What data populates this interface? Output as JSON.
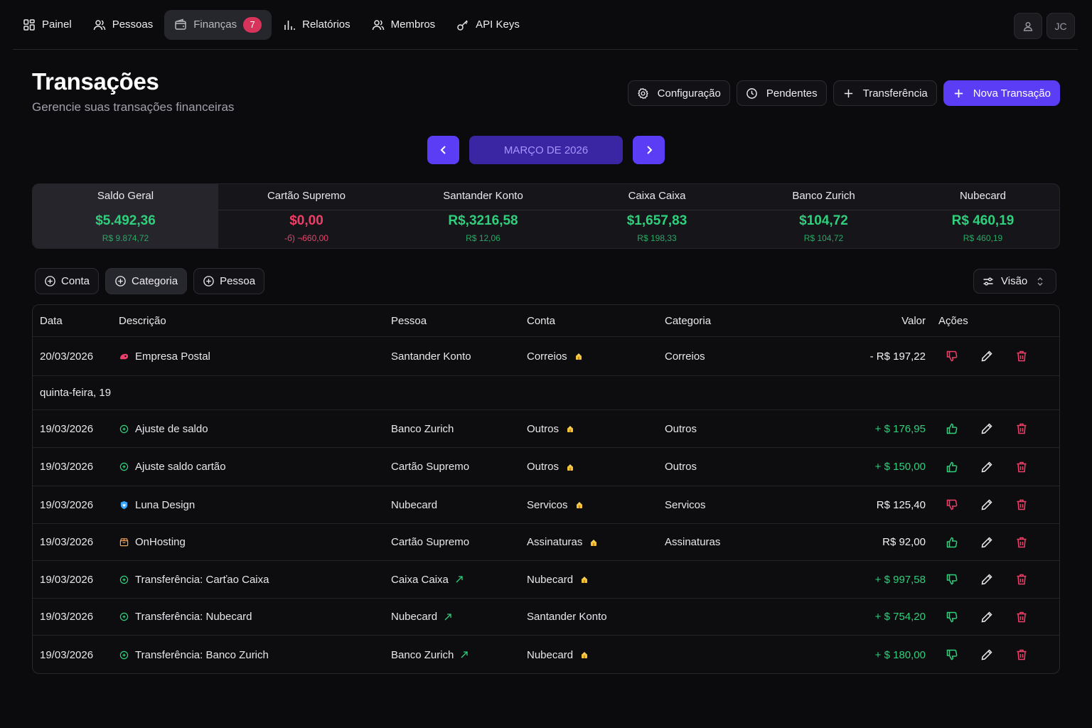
{
  "nav": {
    "items": [
      {
        "label": "Painel",
        "icon": "dashboard-icon"
      },
      {
        "label": "Pessoas",
        "icon": "users-icon"
      },
      {
        "label": "Finanças",
        "icon": "wallet-icon",
        "badge": "7",
        "active": true
      },
      {
        "label": "Relatórios",
        "icon": "bar-chart-icon"
      },
      {
        "label": "Membros",
        "icon": "members-icon"
      },
      {
        "label": "API Keys",
        "icon": "key-icon"
      }
    ],
    "avatar_initials": "JC"
  },
  "header": {
    "title": "Transações",
    "subtitle": "Gerencie suas transações financeiras",
    "buttons": {
      "config": "Configuração",
      "pending": "Pendentes",
      "transfer": "Transferência",
      "new": "Nova Transação"
    }
  },
  "month": {
    "label": "MARÇO DE 2026"
  },
  "accounts": [
    {
      "name": "Saldo Geral",
      "balance": "$5.492,36",
      "sub": "R$ 9.874,72",
      "tone": "green",
      "selected": true
    },
    {
      "name": "Cartão Supremo",
      "balance": "$0,00",
      "sub": "-б) ¬660,00",
      "tone": "red"
    },
    {
      "name": "Santander Konto",
      "balance": "R$,3216,58",
      "sub": "R$ 12,06",
      "tone": "green"
    },
    {
      "name": "Caixa Caixa",
      "balance": "$1,657,83",
      "sub": "R$ 198,33",
      "tone": "green"
    },
    {
      "name": "Banco Zurich",
      "balance": "$104,72",
      "sub": "R$ 104,72",
      "tone": "green"
    },
    {
      "name": "Nubecard",
      "balance": "R$ 460,19",
      "sub": "R$ 460,19",
      "tone": "green"
    }
  ],
  "filters": {
    "conta": "Conta",
    "categoria": "Categoria",
    "pessoa": "Pessoa",
    "view": "Visão"
  },
  "table": {
    "headers": {
      "date": "Data",
      "description": "Descrição",
      "person": "Pessoa",
      "account": "Conta",
      "category": "Categoria",
      "value": "Valor",
      "actions": "Ações"
    },
    "rows": [
      {
        "date": "20/03/2026",
        "description": "Empresa Postal",
        "desc_icon": "postal-icon",
        "person": "Santander Konto",
        "account": "Correios",
        "category": "Correios",
        "value": "- R$ 197,22",
        "value_tone": "white",
        "status": "down-red"
      },
      {
        "date": "19/03/2026",
        "description": "Ajuste de saldo",
        "desc_icon": "plus-circle-icon",
        "person": "Banco Zurich",
        "account": "Outros",
        "category": "Outros",
        "value": "+ $ 176,95",
        "value_tone": "green",
        "status": "up-green"
      },
      {
        "date": "19/03/2026",
        "description": "Ajuste saldo cartão",
        "desc_icon": "plus-circle-icon",
        "person": "Cartão Supremo",
        "account": "Outros",
        "category": "Outros",
        "value": "+ $ 150,00",
        "value_tone": "green",
        "status": "up-green"
      },
      {
        "date": "19/03/2026",
        "description": "Luna Design",
        "desc_icon": "shield-heart-icon",
        "person": "Nubecard",
        "account": "Servicos",
        "category": "Servicos",
        "value": "R$ 125,40",
        "value_tone": "white",
        "status": "down-red"
      },
      {
        "date": "19/03/2026",
        "description": "OnHosting",
        "desc_icon": "box-icon",
        "person": "Cartão Supremo",
        "account": "Assinaturas",
        "category": "Assinaturas",
        "value": "R$ 92,00",
        "value_tone": "white",
        "status": "up-green"
      },
      {
        "date": "19/03/2026",
        "description": "Transferência: Carťao Caixa",
        "desc_icon": "plus-circle-icon",
        "person": "Caixa Caixa",
        "account": "Nubecard",
        "category": "",
        "value": "+ $ 997,58",
        "value_tone": "green",
        "status": "down-green"
      },
      {
        "date": "19/03/2026",
        "description": "Transferência: Nubecard",
        "desc_icon": "plus-circle-icon",
        "person": "Nubecard",
        "account": "Santander Konto",
        "category": "",
        "value": "+ $ 754,20",
        "value_tone": "green",
        "status": "down-green"
      },
      {
        "date": "19/03/2026",
        "description": "Transferência: Banco Zurich",
        "desc_icon": "plus-circle-icon",
        "person": "Banco Zurich",
        "account": "Nubecard",
        "category": "",
        "value": "+ $ 180,00",
        "value_tone": "green",
        "status": "down-green"
      }
    ],
    "group_label": "quinta-feira, 19"
  }
}
